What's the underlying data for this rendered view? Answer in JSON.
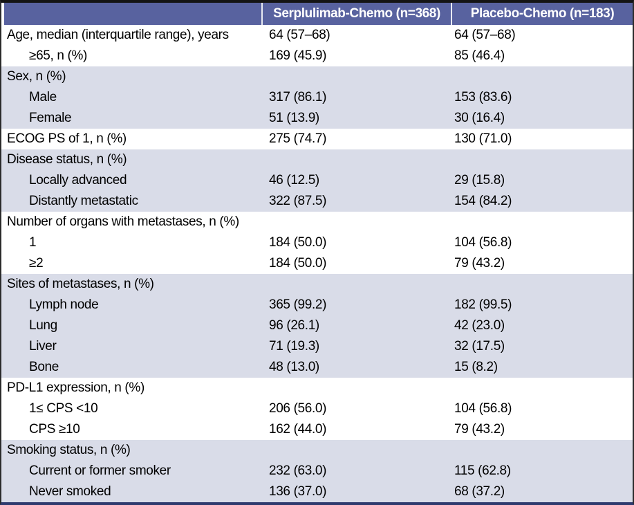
{
  "colors": {
    "header_bg": "#58629F",
    "band_bg": "#D9DCE8",
    "border_dark": "#141414",
    "border_side": "#2B2B2B",
    "border_navy": "#2E3A6E"
  },
  "table": {
    "columns": [
      "",
      "Serplulimab-Chemo (n=368)",
      "Placebo-Chemo (n=183)"
    ],
    "rows": [
      {
        "label": "Age, median (interquartile range), years",
        "indent": 0,
        "serplulimab": "64 (57–68)",
        "placebo": "64 (57–68)",
        "shaded": false
      },
      {
        "label": "≥65, n (%)",
        "indent": 1,
        "serplulimab": "169 (45.9)",
        "placebo": "85 (46.4)",
        "shaded": false
      },
      {
        "label": "Sex, n (%)",
        "indent": 0,
        "serplulimab": "",
        "placebo": "",
        "shaded": true
      },
      {
        "label": "Male",
        "indent": 1,
        "serplulimab": "317 (86.1)",
        "placebo": "153 (83.6)",
        "shaded": true
      },
      {
        "label": "Female",
        "indent": 1,
        "serplulimab": "51 (13.9)",
        "placebo": "30 (16.4)",
        "shaded": true
      },
      {
        "label": "ECOG PS of 1, n (%)",
        "indent": 0,
        "serplulimab": "275 (74.7)",
        "placebo": "130 (71.0)",
        "shaded": false
      },
      {
        "label": "Disease status, n (%)",
        "indent": 0,
        "serplulimab": "",
        "placebo": "",
        "shaded": true
      },
      {
        "label": "Locally advanced",
        "indent": 1,
        "serplulimab": "46 (12.5)",
        "placebo": "29 (15.8)",
        "shaded": true
      },
      {
        "label": "Distantly metastatic",
        "indent": 1,
        "serplulimab": "322 (87.5)",
        "placebo": "154 (84.2)",
        "shaded": true
      },
      {
        "label": "Number of organs with metastases, n (%)",
        "indent": 0,
        "serplulimab": "",
        "placebo": "",
        "shaded": false
      },
      {
        "label": "1",
        "indent": 1,
        "serplulimab": "184 (50.0)",
        "placebo": "104 (56.8)",
        "shaded": false
      },
      {
        "label": "≥2",
        "indent": 1,
        "serplulimab": "184 (50.0)",
        "placebo": "79 (43.2)",
        "shaded": false
      },
      {
        "label": "Sites of metastases, n (%)",
        "indent": 0,
        "serplulimab": "",
        "placebo": "",
        "shaded": true
      },
      {
        "label": "Lymph node",
        "indent": 1,
        "serplulimab": "365 (99.2)",
        "placebo": "182 (99.5)",
        "shaded": true
      },
      {
        "label": "Lung",
        "indent": 1,
        "serplulimab": "96 (26.1)",
        "placebo": "42 (23.0)",
        "shaded": true
      },
      {
        "label": "Liver",
        "indent": 1,
        "serplulimab": "71 (19.3)",
        "placebo": "32 (17.5)",
        "shaded": true
      },
      {
        "label": "Bone",
        "indent": 1,
        "serplulimab": "48 (13.0)",
        "placebo": "15 (8.2)",
        "shaded": true
      },
      {
        "label": "PD-L1 expression, n (%)",
        "indent": 0,
        "serplulimab": "",
        "placebo": "",
        "shaded": false
      },
      {
        "label": "1≤ CPS <10",
        "indent": 1,
        "serplulimab": "206 (56.0)",
        "placebo": "104 (56.8)",
        "shaded": false
      },
      {
        "label": "CPS ≥10",
        "indent": 1,
        "serplulimab": "162 (44.0)",
        "placebo": "79 (43.2)",
        "shaded": false
      },
      {
        "label": "Smoking status, n (%)",
        "indent": 0,
        "serplulimab": "",
        "placebo": "",
        "shaded": true
      },
      {
        "label": "Current or former smoker",
        "indent": 1,
        "serplulimab": "232 (63.0)",
        "placebo": "115 (62.8)",
        "shaded": true
      },
      {
        "label": "Never smoked",
        "indent": 1,
        "serplulimab": "136 (37.0)",
        "placebo": "68 (37.2)",
        "shaded": true
      }
    ]
  }
}
